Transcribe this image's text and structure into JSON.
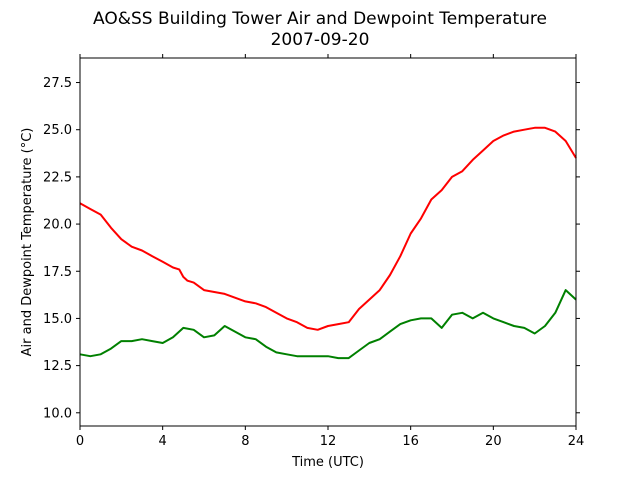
{
  "chart_data": {
    "type": "line",
    "title": "AO&SS Building Tower Air and Dewpoint Temperature",
    "subtitle": "2007-09-20",
    "xlabel": "Time (UTC)",
    "ylabel": "Air and Dewpoint Temperature (°C)",
    "xlim": [
      0,
      24
    ],
    "ylim": [
      9.3,
      28.8
    ],
    "x_ticks": [
      0,
      4,
      8,
      12,
      16,
      20,
      24
    ],
    "x_tick_labels": [
      "0",
      "4",
      "8",
      "12",
      "16",
      "20",
      "24"
    ],
    "y_ticks": [
      10.0,
      12.5,
      15.0,
      17.5,
      20.0,
      22.5,
      25.0,
      27.5
    ],
    "y_tick_labels": [
      "10.0",
      "12.5",
      "15.0",
      "17.5",
      "20.0",
      "22.5",
      "25.0",
      "27.5"
    ],
    "grid": false,
    "series": [
      {
        "color": "#ff0000",
        "x": [
          0,
          0.5,
          1,
          1.5,
          2,
          2.5,
          3,
          3.5,
          4,
          4.5,
          4.8,
          5.0,
          5.2,
          5.5,
          6,
          6.5,
          7,
          7.5,
          8,
          8.5,
          9,
          9.5,
          10,
          10.5,
          11,
          11.5,
          12,
          12.5,
          13,
          13.5,
          14,
          14.5,
          15,
          15.5,
          16,
          16.5,
          17,
          17.5,
          18,
          18.5,
          19,
          19.5,
          20,
          20.5,
          21,
          21.5,
          22,
          22.5,
          23,
          23.5,
          24
        ],
        "y": [
          21.1,
          20.8,
          20.5,
          19.8,
          19.2,
          18.8,
          18.6,
          18.3,
          18.0,
          17.7,
          17.6,
          17.2,
          17.0,
          16.9,
          16.5,
          16.4,
          16.3,
          16.1,
          15.9,
          15.8,
          15.6,
          15.3,
          15.0,
          14.8,
          14.5,
          14.4,
          14.6,
          14.7,
          14.8,
          15.5,
          16.0,
          16.5,
          17.3,
          18.3,
          19.5,
          20.3,
          21.3,
          21.8,
          22.5,
          22.8,
          23.4,
          23.9,
          24.4,
          24.7,
          24.9,
          25.0,
          25.1,
          25.1,
          24.9,
          24.4,
          23.5
        ]
      },
      {
        "color": "#008000",
        "x": [
          0,
          0.5,
          1,
          1.5,
          2,
          2.5,
          3,
          3.5,
          4,
          4.5,
          5,
          5.5,
          6,
          6.5,
          7,
          7.5,
          8,
          8.5,
          9,
          9.5,
          10,
          10.5,
          11,
          11.5,
          12,
          12.5,
          13,
          13.5,
          14,
          14.5,
          15,
          15.5,
          16,
          16.5,
          17,
          17.5,
          18,
          18.5,
          19,
          19.5,
          20,
          20.5,
          21,
          21.5,
          22,
          22.5,
          23,
          23.5,
          24
        ],
        "y": [
          13.1,
          13.0,
          13.1,
          13.4,
          13.8,
          13.8,
          13.9,
          13.8,
          13.7,
          14.0,
          14.5,
          14.4,
          14.0,
          14.1,
          14.6,
          14.3,
          14.0,
          13.9,
          13.5,
          13.2,
          13.1,
          13.0,
          13.0,
          13.0,
          13.0,
          12.9,
          12.9,
          13.3,
          13.7,
          13.9,
          14.3,
          14.7,
          14.9,
          15.0,
          15.0,
          14.5,
          15.2,
          15.3,
          15.0,
          15.3,
          15.0,
          14.8,
          14.6,
          14.5,
          14.2,
          14.6,
          15.3,
          16.5,
          16.0
        ]
      }
    ]
  }
}
